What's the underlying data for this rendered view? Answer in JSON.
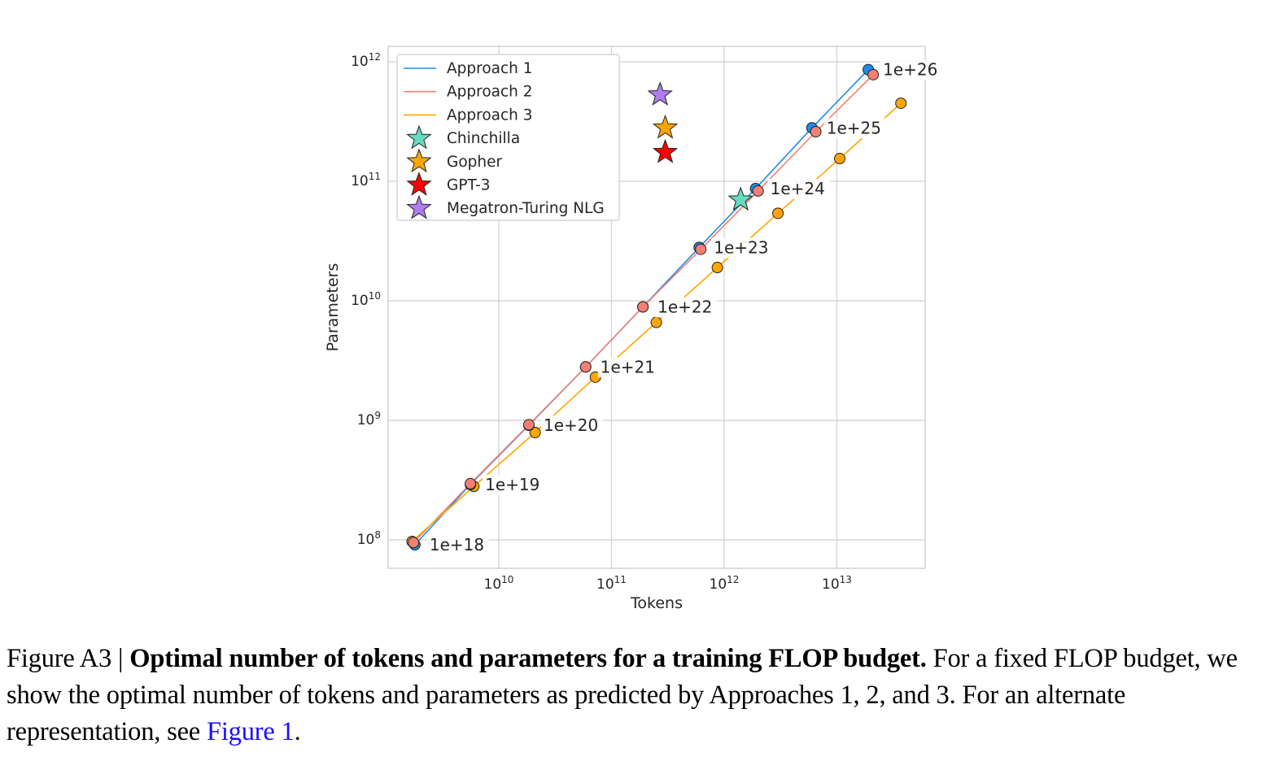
{
  "chart_data": {
    "type": "line",
    "title": "",
    "xlabel": "Tokens",
    "ylabel": "Parameters",
    "xscale": "log",
    "yscale": "log",
    "xlim": [
      1400000000.0,
      80000000000000.0
    ],
    "ylim": [
      75000000.0,
      1300000000000.0
    ],
    "grid": true,
    "xticks": [
      {
        "value": 10000000000.0,
        "base": "10",
        "exp": "10"
      },
      {
        "value": 100000000000.0,
        "base": "10",
        "exp": "11"
      },
      {
        "value": 1000000000000.0,
        "base": "10",
        "exp": "12"
      },
      {
        "value": 10000000000000.0,
        "base": "10",
        "exp": "13"
      }
    ],
    "yticks": [
      {
        "value": 100000000.0,
        "base": "10",
        "exp": "8"
      },
      {
        "value": 1000000000.0,
        "base": "10",
        "exp": "9"
      },
      {
        "value": 10000000000.0,
        "base": "10",
        "exp": "10"
      },
      {
        "value": 100000000000.0,
        "base": "10",
        "exp": "11"
      },
      {
        "value": 1000000000000.0,
        "base": "10",
        "exp": "12"
      }
    ],
    "legend_position": "top-left",
    "series": [
      {
        "name": "Approach 1",
        "color": "#1f8bef",
        "x": [
          1800000000.0,
          5600000000.0,
          18500000000.0,
          59000000000.0,
          190000000000.0,
          600000000000.0,
          1900000000000.0,
          6000000000000.0,
          19000000000000.0
        ],
        "y": [
          91000000.0,
          290000000.0,
          910000000.0,
          2800000000.0,
          8900000000.0,
          28000000000.0,
          87000000000.0,
          280000000000.0,
          860000000000.0
        ]
      },
      {
        "name": "Approach 2",
        "color": "#f47f74",
        "x": [
          1750000000.0,
          5600000000.0,
          18500000000.0,
          59000000000.0,
          190000000000.0,
          620000000000.0,
          2000000000000.0,
          6500000000000.0,
          21000000000000.0
        ],
        "y": [
          95000000.0,
          295000000.0,
          920000000.0,
          2800000000.0,
          8900000000.0,
          27000000000.0,
          83000000000.0,
          260000000000.0,
          780000000000.0
        ]
      },
      {
        "name": "Approach 3",
        "color": "#ffa500",
        "x": [
          1700000000.0,
          6000000000.0,
          21000000000.0,
          72000000000.0,
          250000000000.0,
          870000000000.0,
          3000000000000.0,
          10600000000000.0,
          37000000000000.0
        ],
        "y": [
          97000000.0,
          280000000.0,
          790000000.0,
          2300000000.0,
          6600000000.0,
          19000000000.0,
          54000000000.0,
          155000000000.0,
          450000000000.0
        ]
      }
    ],
    "flop_labels": [
      "1e+18",
      "1e+19",
      "1e+20",
      "1e+21",
      "1e+22",
      "1e+23",
      "1e+24",
      "1e+25",
      "1e+26"
    ],
    "models": [
      {
        "name": "Chinchilla",
        "color": "#66dbbf",
        "tokens": 1400000000000.0,
        "params": 70000000000.0
      },
      {
        "name": "Gopher",
        "color": "#ffa500",
        "tokens": 300000000000.0,
        "params": 280000000000.0
      },
      {
        "name": "GPT-3",
        "color": "#ff0000",
        "tokens": 300000000000.0,
        "params": 175000000000.0
      },
      {
        "name": "Megatron-Turing NLG",
        "color": "#b07cf0",
        "tokens": 270000000000.0,
        "params": 530000000000.0
      }
    ]
  },
  "caption": {
    "prefix": "Figure A3 | ",
    "bold": "Optimal number of tokens and parameters for a training FLOP budget.",
    "body": " For a fixed FLOP budget, we show the optimal number of tokens and parameters as predicted by Approaches 1, 2, and 3. For an alternate representation, see ",
    "link": "Figure 1",
    "suffix": "."
  }
}
